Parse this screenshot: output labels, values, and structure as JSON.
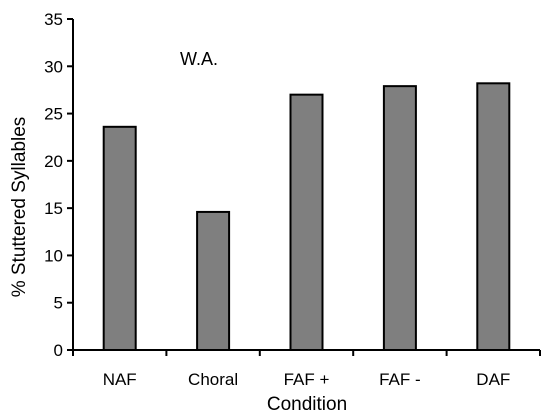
{
  "chart_data": {
    "type": "bar",
    "categories": [
      "NAF",
      "Choral",
      "FAF +",
      "FAF -",
      "DAF"
    ],
    "values": [
      23.6,
      14.6,
      27.0,
      27.9,
      28.2
    ],
    "xlabel": "Condition",
    "ylabel": "% Stuttered Syllables",
    "ylim": [
      0,
      35
    ],
    "yticks": [
      0,
      5,
      10,
      15,
      20,
      25,
      30,
      35
    ],
    "annotation": "W.A.",
    "grid": false,
    "bar_color": "#7f7f7f",
    "bar_edge_color": "#000000"
  }
}
